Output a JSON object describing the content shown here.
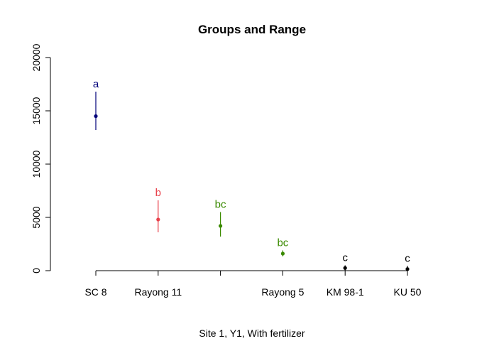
{
  "chart_data": {
    "type": "scatter",
    "title": "Groups and Range",
    "xlabel": "Site 1, Y1, With fertilizer",
    "ylabel": "",
    "ylim": [
      0,
      20000
    ],
    "yticks": [
      0,
      5000,
      10000,
      15000,
      20000
    ],
    "categories": [
      "SC 8",
      "Rayong 11",
      "",
      "Rayong 5",
      "KM 98-1",
      "KU 50"
    ],
    "points": [
      {
        "category": "SC 8",
        "mean": 14500,
        "low": 13200,
        "high": 16800,
        "group": "a",
        "color": "#00007a"
      },
      {
        "category": "Rayong 11",
        "mean": 4800,
        "low": 3600,
        "high": 6600,
        "group": "b",
        "color": "#e8414b"
      },
      {
        "category": "",
        "mean": 4200,
        "low": 3200,
        "high": 5500,
        "group": "bc",
        "color": "#3a8a00"
      },
      {
        "category": "Rayong 5",
        "mean": 1600,
        "low": 1350,
        "high": 1900,
        "group": "bc",
        "color": "#3a8a00"
      },
      {
        "category": "KM 98-1",
        "mean": 250,
        "low": 0,
        "high": 500,
        "group": "c",
        "color": "#000000"
      },
      {
        "category": "KU 50",
        "mean": 150,
        "low": 0,
        "high": 450,
        "group": "c",
        "color": "#000000"
      }
    ]
  }
}
